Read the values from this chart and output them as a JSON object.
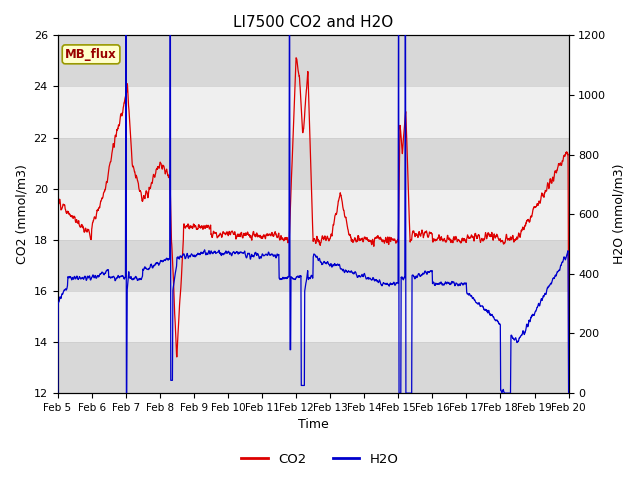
{
  "title": "LI7500 CO2 and H2O",
  "xlabel": "Time",
  "ylabel_left": "CO2 (mmol/m3)",
  "ylabel_right": "H2O (mmol/m3)",
  "ylim_left": [
    12,
    26
  ],
  "ylim_right": [
    0,
    1200
  ],
  "background_color": "#ffffff",
  "plot_bg_color": "#ebebeb",
  "band_color_light": "#f5f5f5",
  "band_color_dark": "#e0e0e0",
  "legend_label_co2": "CO2",
  "legend_label_h2o": "H2O",
  "co2_color": "#dd0000",
  "h2o_color": "#0000cc",
  "textbox_label": "MB_flux",
  "textbox_facecolor": "#ffffcc",
  "textbox_edgecolor": "#999900",
  "x_tick_labels": [
    "Feb 5",
    "Feb 6",
    "Feb 7",
    "Feb 8",
    "Feb 9",
    "Feb 10",
    "Feb 11",
    "Feb 12",
    "Feb 13",
    "Feb 14",
    "Feb 15",
    "Feb 16",
    "Feb 17",
    "Feb 18",
    "Feb 19",
    "Feb 20"
  ],
  "yticks_left": [
    12,
    14,
    16,
    18,
    20,
    22,
    24,
    26
  ],
  "yticks_right": [
    0,
    200,
    400,
    600,
    800,
    1000,
    1200
  ],
  "title_fontsize": 11,
  "axis_label_fontsize": 9,
  "tick_fontsize": 8
}
